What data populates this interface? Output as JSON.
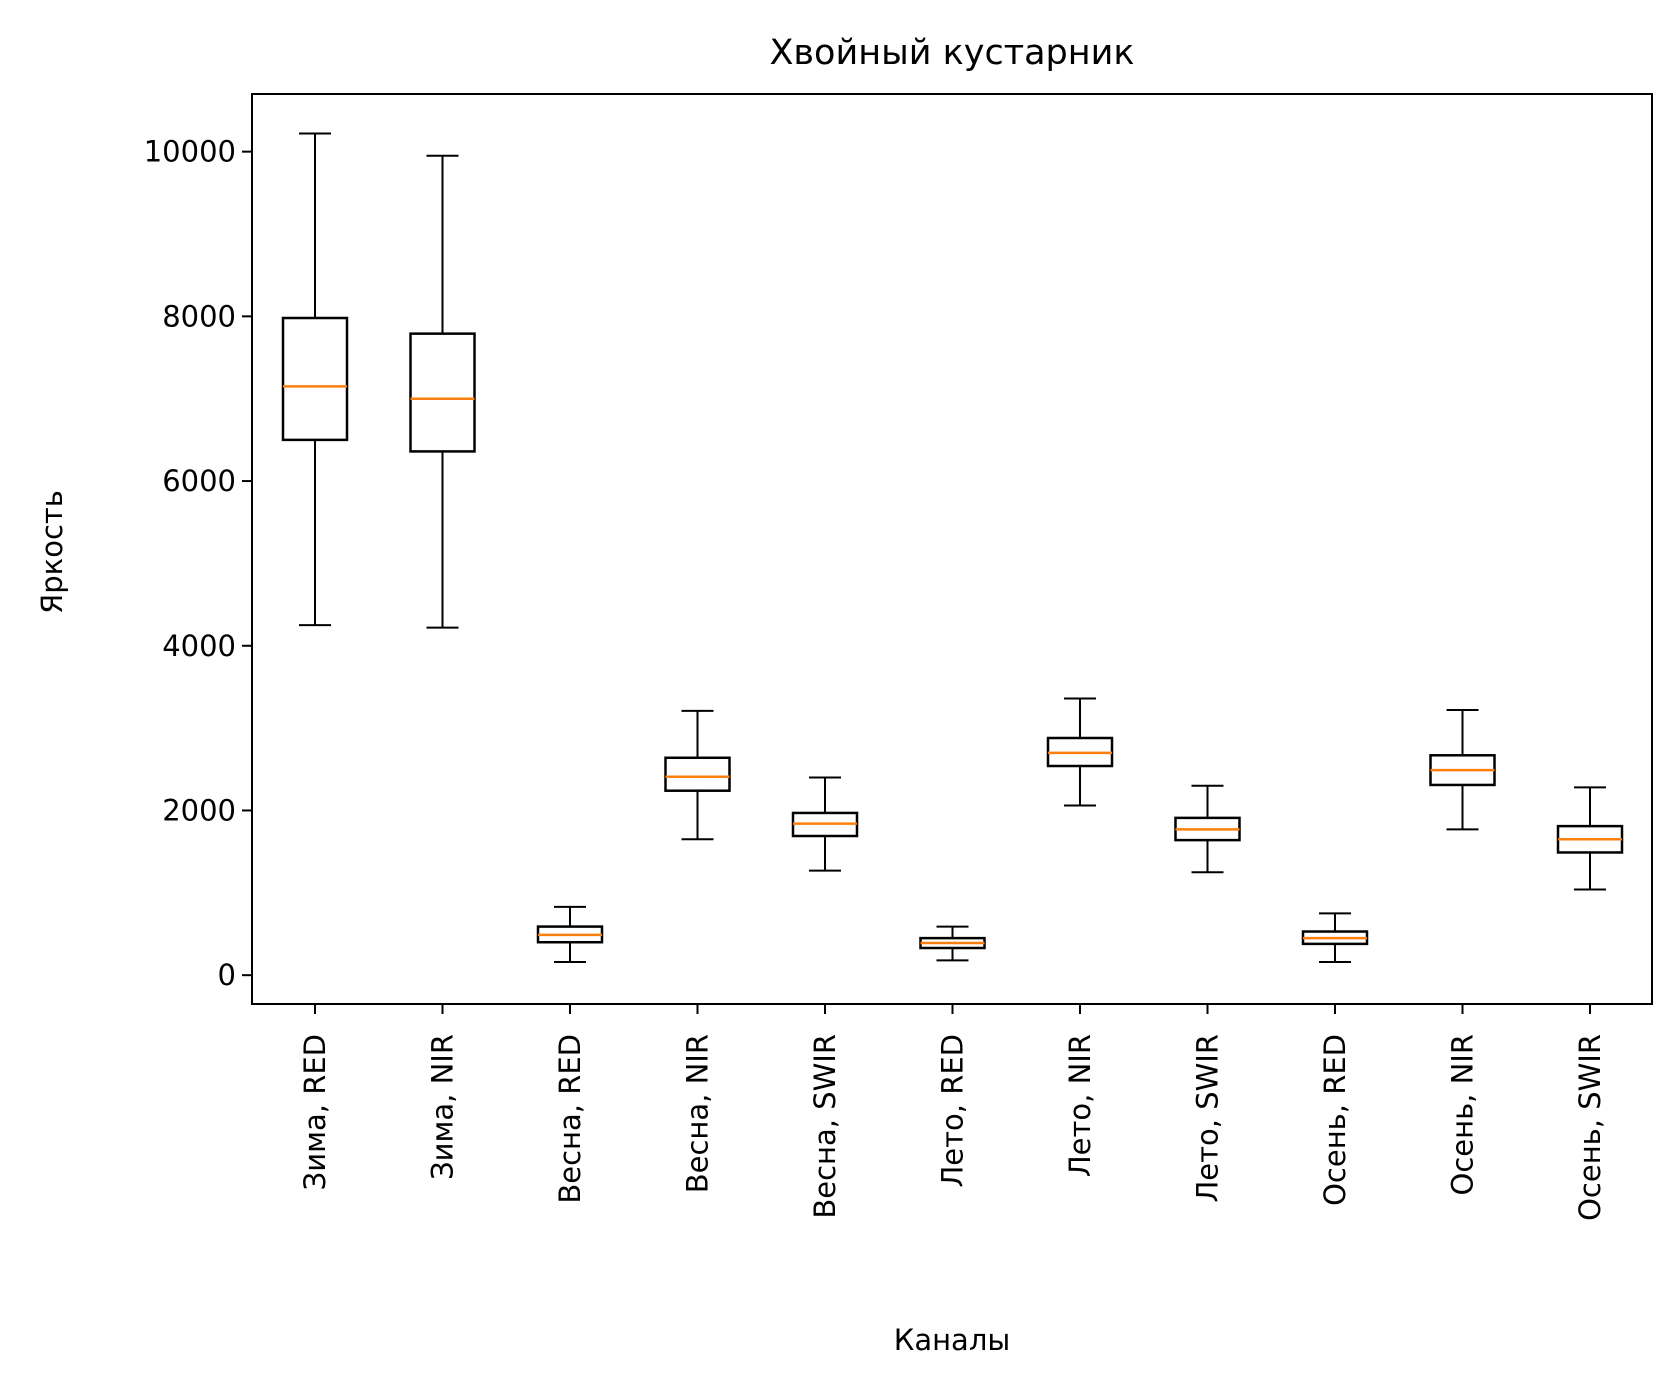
{
  "chart_data": {
    "type": "box",
    "title": "Хвойный кустарник",
    "xlabel": "Каналы",
    "ylabel": "Яркость",
    "ylim": [
      -350,
      10700
    ],
    "yticks": [
      0,
      2000,
      4000,
      6000,
      8000,
      10000
    ],
    "grid": false,
    "colors": {
      "box": "#000000",
      "median": "#ff7f0e",
      "background": "#ffffff"
    },
    "categories": [
      "Зима, RED",
      "Зима, NIR",
      "Весна, RED",
      "Весна, NIR",
      "Весна, SWIR",
      "Лето, RED",
      "Лето, NIR",
      "Лето, SWIR",
      "Осень, RED",
      "Осень, NIR",
      "Осень, SWIR"
    ],
    "boxes": [
      {
        "whisker_low": 4250,
        "q1": 6500,
        "median": 7150,
        "q3": 7980,
        "whisker_high": 10220
      },
      {
        "whisker_low": 4220,
        "q1": 6360,
        "median": 7000,
        "q3": 7790,
        "whisker_high": 9950
      },
      {
        "whisker_low": 160,
        "q1": 400,
        "median": 490,
        "q3": 590,
        "whisker_high": 830
      },
      {
        "whisker_low": 1650,
        "q1": 2240,
        "median": 2410,
        "q3": 2640,
        "whisker_high": 3210
      },
      {
        "whisker_low": 1270,
        "q1": 1690,
        "median": 1840,
        "q3": 1970,
        "whisker_high": 2400
      },
      {
        "whisker_low": 180,
        "q1": 330,
        "median": 390,
        "q3": 450,
        "whisker_high": 590
      },
      {
        "whisker_low": 2060,
        "q1": 2540,
        "median": 2700,
        "q3": 2880,
        "whisker_high": 3360
      },
      {
        "whisker_low": 1250,
        "q1": 1640,
        "median": 1770,
        "q3": 1910,
        "whisker_high": 2300
      },
      {
        "whisker_low": 160,
        "q1": 380,
        "median": 450,
        "q3": 530,
        "whisker_high": 750
      },
      {
        "whisker_low": 1770,
        "q1": 2310,
        "median": 2490,
        "q3": 2670,
        "whisker_high": 3220
      },
      {
        "whisker_low": 1040,
        "q1": 1490,
        "median": 1650,
        "q3": 1810,
        "whisker_high": 2280
      }
    ]
  }
}
